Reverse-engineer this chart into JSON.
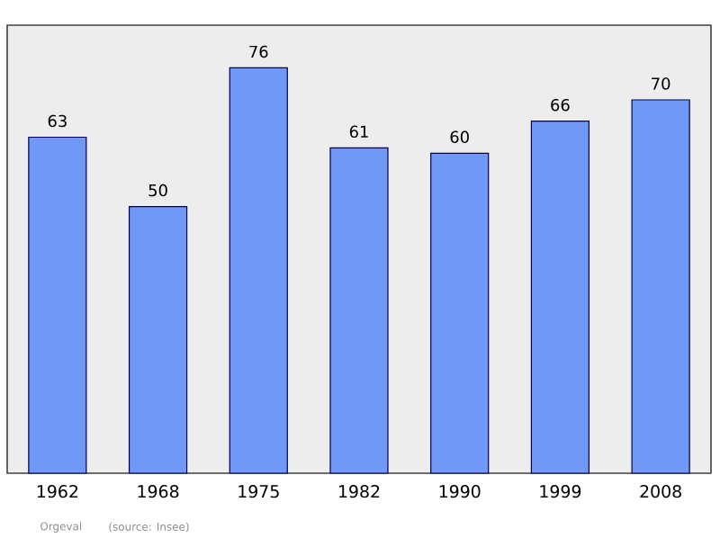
{
  "chart_data": {
    "type": "bar",
    "categories": [
      "1962",
      "1968",
      "1975",
      "1982",
      "1990",
      "1999",
      "2008"
    ],
    "values": [
      63,
      50,
      76,
      61,
      60,
      66,
      70
    ],
    "color": "#7099f7",
    "ylim": [
      0,
      84
    ],
    "tick_labels": "x",
    "data_labels": true,
    "grid": false,
    "annotations": [
      "Orgeval",
      "(source: Insee)"
    ]
  }
}
